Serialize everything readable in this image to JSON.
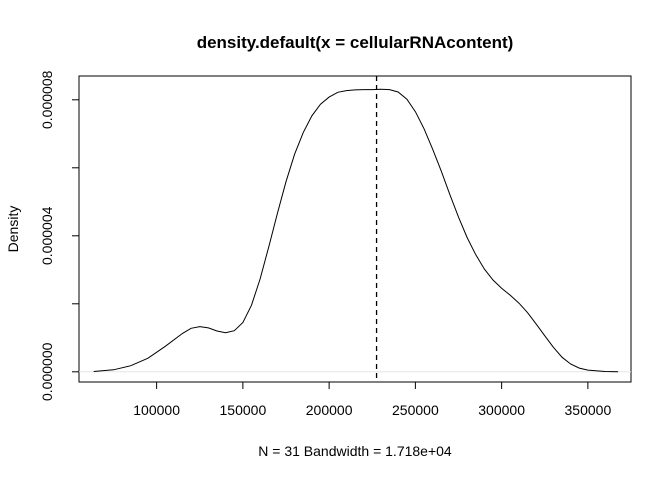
{
  "chart_data": {
    "type": "line",
    "title": "density.default(x = cellularRNAcontent)",
    "xlabel": "N = 31   Bandwidth = 1.718e+04",
    "ylabel": "Density",
    "xlim": [
      55000,
      375000
    ],
    "ylim": [
      -3e-07,
      8.7e-06
    ],
    "x_ticks": [
      100000,
      150000,
      200000,
      250000,
      300000,
      350000
    ],
    "x_tick_labels": [
      "100000",
      "150000",
      "200000",
      "250000",
      "300000",
      "350000"
    ],
    "y_ticks": [
      0,
      2e-06,
      4e-06,
      6e-06,
      8e-06
    ],
    "y_tick_labels": [
      "0.000000",
      "",
      "0.000004",
      "",
      "0.000008"
    ],
    "vline_x": 227500,
    "grid": false,
    "series": [
      {
        "x": [
          63500,
          75000,
          85000,
          95000,
          105000,
          115000,
          120000,
          125000,
          130000,
          135000,
          140000,
          145000,
          150000,
          155000,
          160000,
          165000,
          170000,
          175000,
          180000,
          185000,
          190000,
          195000,
          200000,
          205000,
          210000,
          215000,
          220000,
          225000,
          230000,
          235000,
          240000,
          245000,
          250000,
          255000,
          260000,
          265000,
          270000,
          275000,
          280000,
          285000,
          290000,
          295000,
          300000,
          305000,
          310000,
          315000,
          320000,
          325000,
          330000,
          335000,
          340000,
          345000,
          350000,
          360000,
          367500
        ],
        "y": [
          1e-08,
          6e-08,
          1.8e-07,
          4e-07,
          7.5e-07,
          1.13e-06,
          1.28e-06,
          1.33e-06,
          1.29e-06,
          1.2e-06,
          1.15e-06,
          1.21e-06,
          1.45e-06,
          1.96e-06,
          2.73e-06,
          3.68e-06,
          4.66e-06,
          5.59e-06,
          6.4e-06,
          7.04e-06,
          7.53e-06,
          7.87e-06,
          8.08e-06,
          8.22e-06,
          8.27e-06,
          8.29e-06,
          8.3e-06,
          8.3e-06,
          8.31e-06,
          8.3e-06,
          8.23e-06,
          8.02e-06,
          7.65e-06,
          7.15e-06,
          6.55e-06,
          5.9e-06,
          5.21e-06,
          4.55e-06,
          3.95e-06,
          3.44e-06,
          3.02e-06,
          2.7e-06,
          2.46e-06,
          2.25e-06,
          2.02e-06,
          1.74e-06,
          1.41e-06,
          1.06e-06,
          7.2e-07,
          4.3e-07,
          2.3e-07,
          1.1e-07,
          5e-08,
          1e-08,
          0.0
        ]
      }
    ]
  }
}
